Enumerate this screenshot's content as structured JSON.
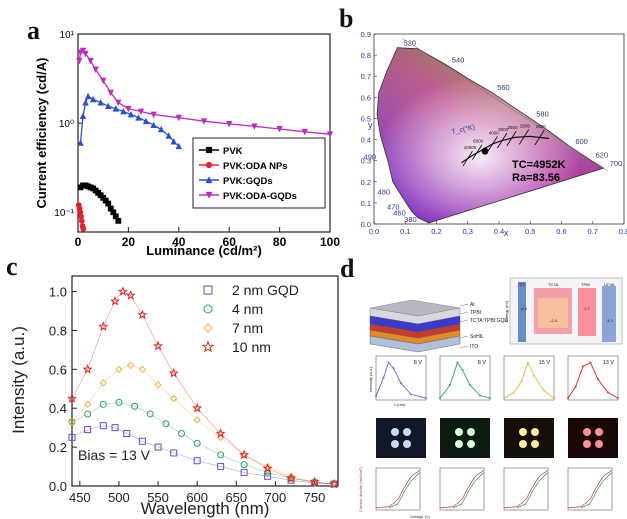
{
  "panel_labels": {
    "a": "a",
    "b": "b",
    "c": "c",
    "d": "d"
  },
  "colors": {
    "pvk": "#000000",
    "oda_nps": "#e8202a",
    "gqds": "#2a4fd0",
    "oda_gqds": "#c02cc0",
    "gqd2": "#5a55c8",
    "gqd4": "#2aa060",
    "gqd7": "#f0b040",
    "gqd10": "#e02020"
  },
  "chart_data": [
    {
      "id": "a",
      "type": "line",
      "title": "",
      "xlabel": "Luminance (cd/m²)",
      "ylabel": "Current efficiency (cd/A)",
      "xlim": [
        0,
        100
      ],
      "ylim": [
        0.06,
        10
      ],
      "yscale": "log",
      "xticks": [
        0,
        20,
        40,
        60,
        80,
        100
      ],
      "yticks": [
        {
          "value": 0.1,
          "label": "10⁻¹"
        },
        {
          "value": 1,
          "label": "10⁰"
        },
        {
          "value": 10,
          "label": "10¹"
        }
      ],
      "legend_position": "lower-right",
      "series": [
        {
          "name": "PVK",
          "color": "#000000",
          "marker": "square",
          "x": [
            1,
            2,
            3,
            4,
            5,
            6,
            7,
            8,
            9,
            10,
            11,
            12,
            13,
            14,
            15,
            16
          ],
          "y": [
            0.19,
            0.2,
            0.2,
            0.195,
            0.19,
            0.185,
            0.175,
            0.165,
            0.155,
            0.145,
            0.135,
            0.125,
            0.11,
            0.1,
            0.09,
            0.08
          ]
        },
        {
          "name": "PVK:ODA NPs",
          "color": "#e8202a",
          "marker": "circle",
          "x": [
            0.3,
            0.6,
            0.9,
            1.2,
            1.5,
            1.8,
            2.1
          ],
          "y": [
            0.12,
            0.11,
            0.1,
            0.09,
            0.08,
            0.07,
            0.065
          ]
        },
        {
          "name": "PVK:GQDs",
          "color": "#2a4fd0",
          "marker": "triangle-up",
          "x": [
            1,
            2,
            3,
            4,
            6,
            9,
            12,
            15,
            18,
            21,
            24,
            27,
            30,
            33,
            36,
            38,
            40
          ],
          "y": [
            0.6,
            1.2,
            1.7,
            2.0,
            1.85,
            1.7,
            1.55,
            1.45,
            1.35,
            1.25,
            1.15,
            1.05,
            0.95,
            0.85,
            0.72,
            0.62,
            0.55
          ]
        },
        {
          "name": "PVK:ODA-GQDs",
          "color": "#c02cc0",
          "marker": "triangle-down",
          "x": [
            0.5,
            1,
            2,
            3,
            5,
            7,
            10,
            13,
            16,
            20,
            25,
            30,
            40,
            50,
            60,
            70,
            80,
            90,
            100
          ],
          "y": [
            5.0,
            6.2,
            6.5,
            6.0,
            5.0,
            4.0,
            3.0,
            2.2,
            1.7,
            1.45,
            1.35,
            1.25,
            1.15,
            1.05,
            0.98,
            0.92,
            0.86,
            0.8,
            0.75
          ]
        }
      ]
    },
    {
      "id": "b",
      "type": "scatter",
      "title": "",
      "xlabel": "x",
      "ylabel": "y",
      "xlim": [
        0,
        0.8
      ],
      "ylim": [
        0,
        0.9
      ],
      "xticks": [
        0.0,
        0.1,
        0.2,
        0.3,
        0.4,
        0.5,
        0.6,
        0.7,
        0.8
      ],
      "yticks": [
        0.0,
        0.1,
        0.2,
        0.3,
        0.4,
        0.5,
        0.6,
        0.7,
        0.8,
        0.9
      ],
      "locus_labels": [
        {
          "text": "380",
          "x": 0.175,
          "y": 0.0
        },
        {
          "text": "460",
          "x": 0.14,
          "y": 0.03
        },
        {
          "text": "470",
          "x": 0.12,
          "y": 0.06
        },
        {
          "text": "480",
          "x": 0.09,
          "y": 0.13
        },
        {
          "text": "490",
          "x": 0.045,
          "y": 0.295
        },
        {
          "text": "520",
          "x": 0.075,
          "y": 0.835
        },
        {
          "text": "540",
          "x": 0.23,
          "y": 0.755
        },
        {
          "text": "560",
          "x": 0.375,
          "y": 0.625
        },
        {
          "text": "580",
          "x": 0.5,
          "y": 0.5
        },
        {
          "text": "600",
          "x": 0.625,
          "y": 0.37
        },
        {
          "text": "620",
          "x": 0.69,
          "y": 0.305
        },
        {
          "text": "700",
          "x": 0.735,
          "y": 0.265
        }
      ],
      "point": {
        "x": 0.355,
        "y": 0.345
      },
      "annotations": [
        "TC=4952K",
        "Ra=83.56",
        "T_c(°K)"
      ],
      "planckian_labels": [
        "10000",
        "6000",
        "4000",
        "3000",
        "2500",
        "2000",
        "1500"
      ]
    },
    {
      "id": "c",
      "type": "line",
      "title": "",
      "xlabel": "Wavelength (nm)",
      "ylabel": "Intensity (a.u.)",
      "xlim": [
        440,
        780
      ],
      "ylim": [
        0,
        1.08
      ],
      "xticks": [
        450,
        500,
        550,
        600,
        650,
        700,
        750
      ],
      "yticks": [
        0.0,
        0.2,
        0.4,
        0.6,
        0.8,
        1.0
      ],
      "annotation": "Bias = 13 V",
      "legend_position": "upper-right",
      "series": [
        {
          "name": "2 nm GQD",
          "color": "#5a55c8",
          "marker": "square",
          "x": [
            440,
            460,
            480,
            495,
            510,
            530,
            550,
            570,
            600,
            630,
            660,
            690,
            720,
            750,
            775
          ],
          "y": [
            0.25,
            0.29,
            0.31,
            0.3,
            0.27,
            0.23,
            0.2,
            0.17,
            0.13,
            0.1,
            0.07,
            0.05,
            0.03,
            0.015,
            0.01
          ]
        },
        {
          "name": "4 nm",
          "color": "#2aa060",
          "marker": "circle",
          "x": [
            440,
            460,
            480,
            500,
            520,
            540,
            560,
            580,
            600,
            630,
            660,
            690,
            720,
            750,
            775
          ],
          "y": [
            0.33,
            0.37,
            0.42,
            0.43,
            0.41,
            0.37,
            0.32,
            0.27,
            0.22,
            0.16,
            0.11,
            0.07,
            0.04,
            0.02,
            0.01
          ]
        },
        {
          "name": "7 nm",
          "color": "#f0b040",
          "marker": "diamond",
          "x": [
            440,
            460,
            480,
            500,
            515,
            530,
            550,
            570,
            600,
            630,
            660,
            690,
            720,
            750,
            775
          ],
          "y": [
            0.33,
            0.42,
            0.53,
            0.6,
            0.62,
            0.6,
            0.52,
            0.45,
            0.34,
            0.25,
            0.16,
            0.1,
            0.05,
            0.02,
            0.01
          ]
        },
        {
          "name": "10 nm",
          "color": "#e02020",
          "marker": "star",
          "x": [
            440,
            460,
            480,
            495,
            505,
            515,
            530,
            550,
            570,
            600,
            630,
            660,
            690,
            720,
            750,
            775
          ],
          "y": [
            0.45,
            0.6,
            0.82,
            0.95,
            1.0,
            0.98,
            0.88,
            0.72,
            0.58,
            0.4,
            0.27,
            0.16,
            0.09,
            0.04,
            0.02,
            0.01
          ]
        }
      ]
    }
  ],
  "panel_d": {
    "stack_layers": [
      "Al",
      "TPBI",
      "TCTA:TPBI:GQD",
      "SoHIL",
      "ITO"
    ],
    "band_labels": [
      "ITO",
      "TCTA",
      "TPBI",
      "LiF/Al"
    ],
    "band_values": [
      "-4.8",
      "-2.4",
      "-2.7",
      "-4.2"
    ],
    "band_axis": "Energy (eV)",
    "spectra_voltages": [
      "8 V",
      "8 V",
      "15 V",
      "13 V"
    ],
    "spectra_axis_y": "Intensity (a.u.)",
    "spectra_axis_x": "λ (nm)",
    "jv_axis_y": "Current density (mA/cm²)",
    "jv_axis_x": "Voltage (V)"
  }
}
